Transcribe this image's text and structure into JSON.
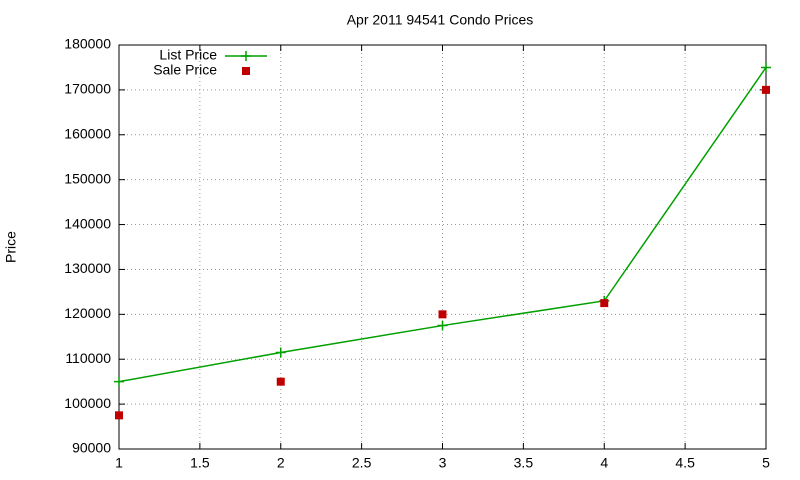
{
  "chart_data": {
    "type": "line",
    "title": "Apr 2011 94541 Condo Prices",
    "y_label": "Price",
    "x": [
      1,
      2,
      3,
      4,
      5
    ],
    "series": [
      {
        "name": "List Price",
        "color": "#00a000",
        "style": "linespoints",
        "values": [
          105000,
          111500,
          117500,
          123000,
          175000
        ]
      },
      {
        "name": "Sale Price",
        "color": "#c00000",
        "style": "points",
        "values": [
          97500,
          105000,
          120000,
          122500,
          170000
        ]
      }
    ],
    "xlim": [
      1,
      5
    ],
    "xticks": [
      1,
      1.5,
      2,
      2.5,
      3,
      3.5,
      4,
      4.5,
      5
    ],
    "ylim": [
      90000,
      180000
    ],
    "yticks": [
      90000,
      100000,
      110000,
      120000,
      130000,
      140000,
      150000,
      160000,
      170000,
      180000
    ],
    "grid": true,
    "legend": "top-left"
  }
}
